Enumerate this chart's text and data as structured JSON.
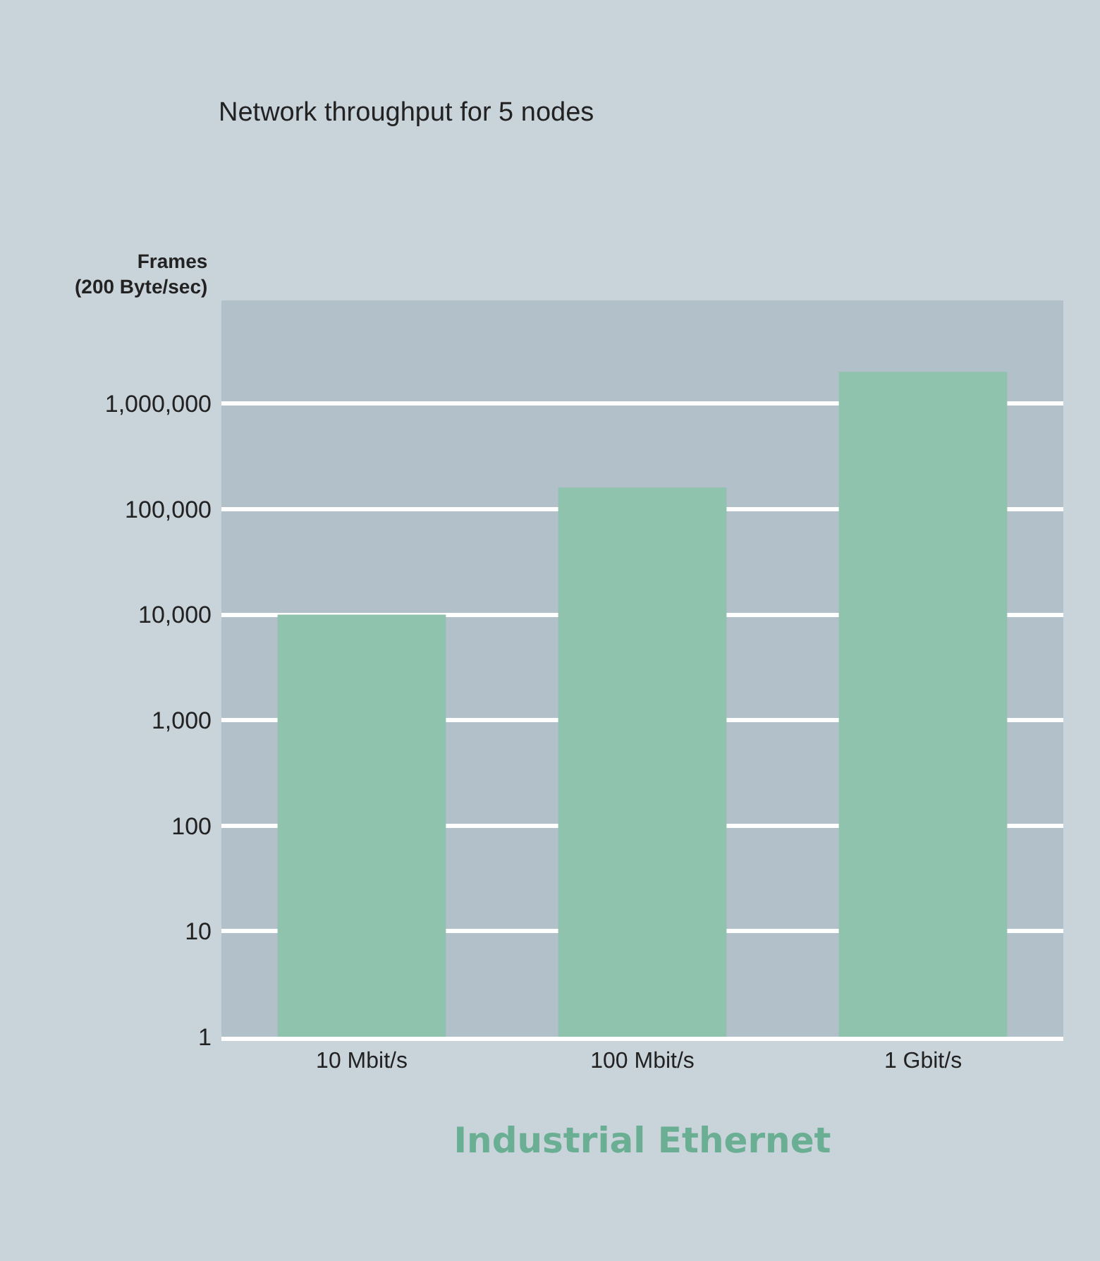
{
  "chart_data": {
    "type": "bar",
    "title": "Network throughput for 5 nodes",
    "xlabel": "Industrial Ethernet",
    "ylabel": "Frames\n(200 Byte/sec)",
    "categories": [
      "10 Mbit/s",
      "100 Mbit/s",
      "1 Gbit/s"
    ],
    "values": [
      10000,
      160000,
      2000000
    ],
    "color": "#8fc3ad",
    "log": "y",
    "ylim": [
      1,
      9500000
    ],
    "yticks": [
      1,
      10,
      100,
      {
        "value": 1000,
        "label": "1,000"
      },
      {
        "value": 10000,
        "label": "10,000"
      },
      {
        "value": 100000,
        "label": "100,000"
      },
      {
        "value": 1000000,
        "label": "1,000,000"
      }
    ],
    "grid": "y"
  }
}
